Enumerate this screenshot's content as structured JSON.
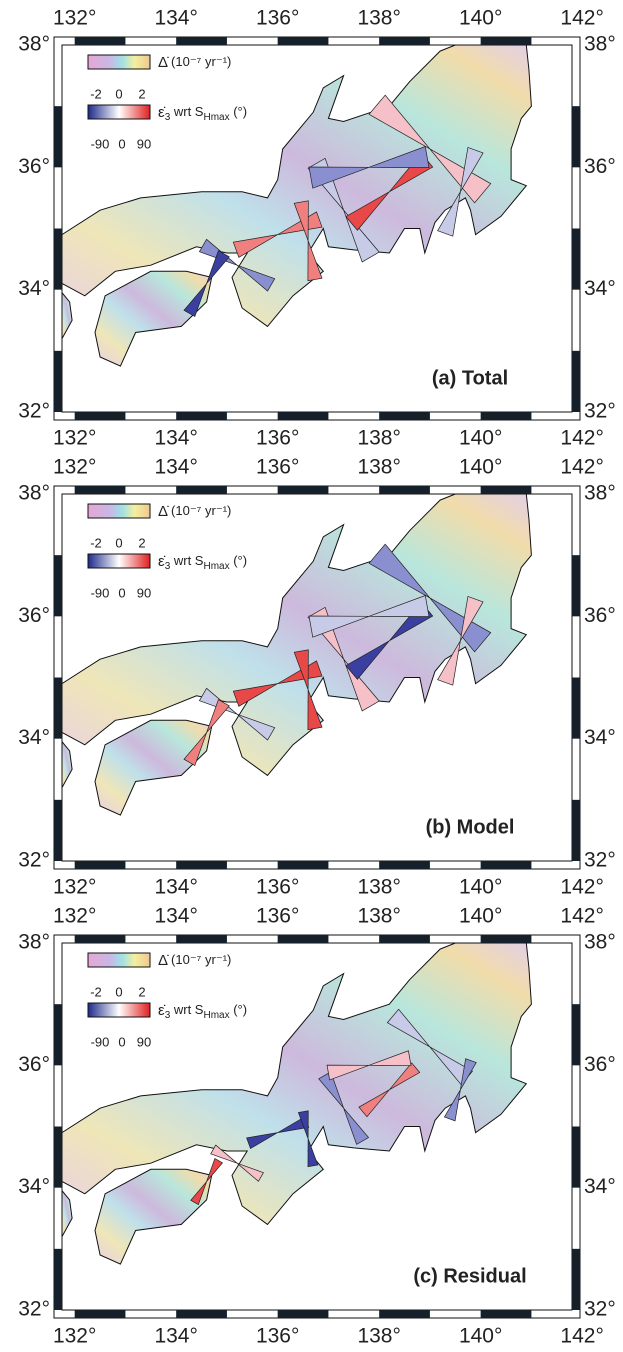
{
  "panels": [
    {
      "label": "(a) Total"
    },
    {
      "label": "(b) Model"
    },
    {
      "label": "(c) Residual"
    }
  ],
  "lon_ticks": [
    "132°",
    "134°",
    "136°",
    "138°",
    "140°",
    "142°"
  ],
  "lat_ticks": [
    "38°",
    "36°",
    "34°",
    "32°"
  ],
  "legend": {
    "rate_symbol": "Δ̇",
    "rate_unit": "(10⁻⁷ yr⁻¹)",
    "rate_ticks": [
      "-2",
      "0",
      "2"
    ],
    "strain_symbol": "ε̇",
    "strain_sub": "3",
    "strain_text": " wrt S",
    "strain_sub2": "Hmax",
    "strain_unit": " (°)",
    "angle_ticks": [
      "-90",
      "0",
      "90"
    ]
  }
}
